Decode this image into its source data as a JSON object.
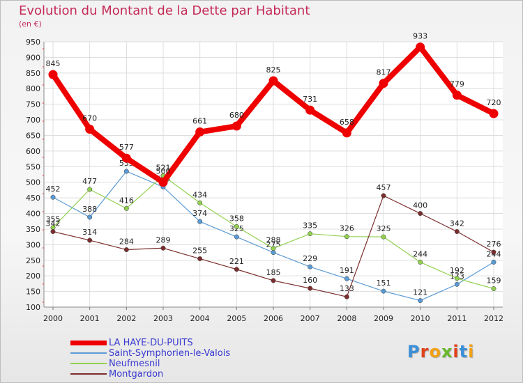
{
  "chart_data": {
    "type": "line",
    "title": "Evolution du Montant de la Dette par Habitant",
    "subtitle": "(en €)",
    "x": [
      "2000",
      "2001",
      "2002",
      "2003",
      "2004",
      "2005",
      "2006",
      "2007",
      "2008",
      "2009",
      "2010",
      "2011",
      "2012"
    ],
    "ylim": [
      100,
      950
    ],
    "yticks": [
      100,
      150,
      200,
      250,
      300,
      350,
      400,
      450,
      500,
      550,
      600,
      650,
      700,
      750,
      800,
      850,
      900,
      950
    ],
    "grid": true,
    "legend_position": "bottom-left",
    "series": [
      {
        "name": "LA HAYE-DU-PUITS",
        "color": "#ee0000",
        "width": 8,
        "values": [
          845,
          670,
          577,
          500,
          661,
          680,
          825,
          731,
          658,
          817,
          933,
          779,
          720
        ]
      },
      {
        "name": "Saint-Symphorien-le-Valois",
        "color": "#5b9bd5",
        "width": 1.2,
        "values": [
          452,
          388,
          535,
          485,
          374,
          325,
          275,
          229,
          191,
          151,
          121,
          173,
          244
        ]
      },
      {
        "name": "Neufmesnil",
        "color": "#92d050",
        "width": 1.2,
        "values": [
          355,
          477,
          416,
          521,
          434,
          358,
          288,
          335,
          326,
          325,
          244,
          192,
          159
        ]
      },
      {
        "name": "Montgardon",
        "color": "#7b2d2d",
        "width": 1.2,
        "values": [
          342,
          314,
          284,
          289,
          255,
          221,
          185,
          160,
          133,
          457,
          400,
          342,
          276
        ]
      }
    ]
  },
  "brand": {
    "logo_text": "Proxiti"
  }
}
